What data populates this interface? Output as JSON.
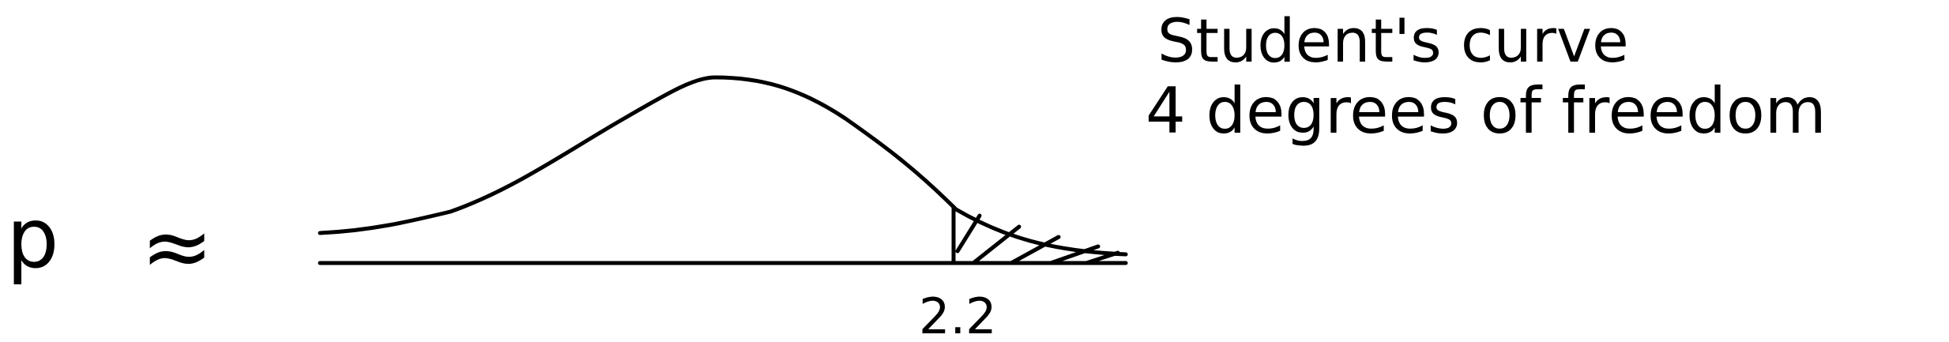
{
  "figure": {
    "p_symbol": "p",
    "approx_symbol": "≈",
    "curve_title": "Student's curve",
    "curve_subtitle": "4 degrees of freedom",
    "cutoff_label": "2.2",
    "ink_color": "#000000",
    "background_color": "#ffffff"
  }
}
